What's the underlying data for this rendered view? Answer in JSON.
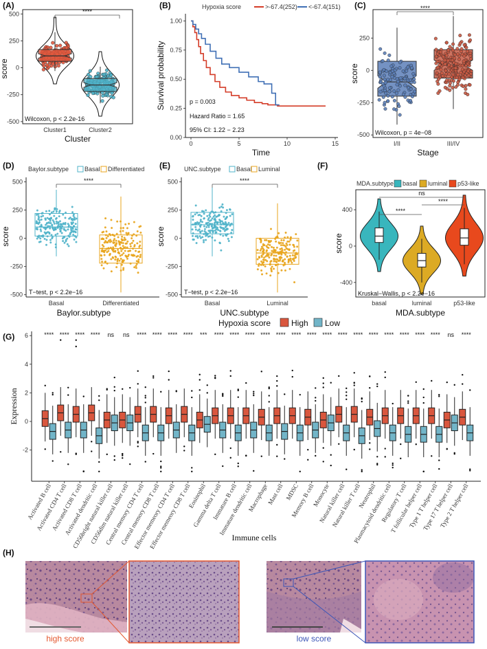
{
  "colors": {
    "cluster1": "#e2583e",
    "cluster2": "#4fb3c9",
    "stage_early": "#5c7fb8",
    "stage_late": "#c85a44",
    "basal": "#4fb3c9",
    "differentiated": "#e8a41c",
    "luminal": "#e8a41c",
    "mda_basal": "#39b6bd",
    "mda_luminal": "#dcaa24",
    "mda_p53": "#e8491d",
    "g_high": "#d9573e",
    "g_low": "#72b5c8",
    "surv_high": "#d43c28",
    "surv_low": "#3f6fb5",
    "he_pink": "#c9879f",
    "he_purple": "#7c5a92",
    "zoom_red": "#e4572e",
    "zoom_blue": "#3b55b7"
  },
  "panels": {
    "A": {
      "label": "(A)"
    },
    "B": {
      "label": "(B)"
    },
    "C": {
      "label": "(C)"
    },
    "D": {
      "label": "(D)"
    },
    "E": {
      "label": "(E)"
    },
    "F": {
      "label": "(F)"
    },
    "G": {
      "label": "(G)"
    },
    "H": {
      "label": "(H)"
    }
  },
  "chart_data": [
    {
      "id": "A",
      "type": "violin-box",
      "xlabel": "Cluster",
      "ylabel": "score",
      "categories": [
        "Cluster1",
        "Cluster2"
      ],
      "yticks": [
        500,
        250,
        0,
        -250,
        -500
      ],
      "ylim": [
        -520,
        540
      ],
      "boxes": [
        {
          "group": "Cluster1",
          "q1": 60,
          "median": 110,
          "q3": 170,
          "whisk_lo": -30,
          "whisk_hi": 330,
          "color_key": "cluster1"
        },
        {
          "group": "Cluster2",
          "q1": -220,
          "median": -160,
          "q3": -100,
          "whisk_lo": -330,
          "whisk_hi": 10,
          "color_key": "cluster2"
        }
      ],
      "annotations": {
        "pvalue": "Wilcoxon, p < 2.2e-16",
        "sig": "****"
      }
    },
    {
      "id": "B",
      "type": "line",
      "title": "Hypoxia score",
      "xlabel": "Time",
      "ylabel": "Survival probability",
      "xticks": [
        0,
        5,
        10,
        15
      ],
      "yticks": [
        "0.00",
        "0.25",
        "0.50",
        "0.75",
        "1.00"
      ],
      "xlim": [
        0,
        15
      ],
      "ylim": [
        0,
        1.05
      ],
      "series": [
        {
          "name": ">-67.4(252)",
          "color_key": "surv_high",
          "points": [
            [
              0,
              1.0
            ],
            [
              0.2,
              0.95
            ],
            [
              0.4,
              0.9
            ],
            [
              0.6,
              0.84
            ],
            [
              0.8,
              0.78
            ],
            [
              1.0,
              0.72
            ],
            [
              1.3,
              0.66
            ],
            [
              1.6,
              0.6
            ],
            [
              2.0,
              0.54
            ],
            [
              2.5,
              0.48
            ],
            [
              3.0,
              0.43
            ],
            [
              3.6,
              0.39
            ],
            [
              4.2,
              0.36
            ],
            [
              5.0,
              0.34
            ],
            [
              5.8,
              0.32
            ],
            [
              6.6,
              0.3
            ],
            [
              7.4,
              0.29
            ],
            [
              8.0,
              0.28
            ],
            [
              9.0,
              0.27
            ],
            [
              14,
              0.27
            ]
          ]
        },
        {
          "name": "<-67.4(151)",
          "color_key": "surv_low",
          "points": [
            [
              0,
              1.0
            ],
            [
              0.2,
              0.97
            ],
            [
              0.5,
              0.93
            ],
            [
              0.8,
              0.89
            ],
            [
              1.1,
              0.85
            ],
            [
              1.5,
              0.8
            ],
            [
              2.0,
              0.74
            ],
            [
              2.6,
              0.68
            ],
            [
              3.2,
              0.63
            ],
            [
              4.0,
              0.6
            ],
            [
              5.0,
              0.56
            ],
            [
              6.0,
              0.52
            ],
            [
              7.0,
              0.48
            ],
            [
              7.6,
              0.46
            ],
            [
              8.4,
              0.38
            ],
            [
              8.8,
              0.28
            ],
            [
              9.2,
              0.28
            ]
          ]
        }
      ],
      "annotations": {
        "pvalue": "p = 0.003",
        "hr": "Hazard Ratio = 1.65",
        "ci": "95% CI: 1.22 − 2.23"
      }
    },
    {
      "id": "C",
      "type": "box",
      "xlabel": "Stage",
      "ylabel": "score",
      "categories": [
        "I/II",
        "III/IV"
      ],
      "yticks": [
        250,
        0,
        -250,
        -500
      ],
      "ylim": [
        -520,
        470
      ],
      "boxes": [
        {
          "group": "I/II",
          "q1": -200,
          "median": -90,
          "q3": 70,
          "whisk_lo": -420,
          "whisk_hi": 330,
          "color_key": "stage_early"
        },
        {
          "group": "III/IV",
          "q1": -60,
          "median": 40,
          "q3": 160,
          "whisk_lo": -300,
          "whisk_hi": 420,
          "color_key": "stage_late"
        }
      ],
      "annotations": {
        "pvalue": "Wilcoxon, p = 4e−08",
        "sig": "****"
      }
    },
    {
      "id": "D",
      "type": "box",
      "xlabel": "Baylor.subtype",
      "ylabel": "score",
      "legend_title": "Baylor.subtype",
      "legend": [
        "Basal",
        "Differentiated"
      ],
      "categories": [
        "Basal",
        "Differentiated"
      ],
      "yticks": [
        500,
        250,
        0,
        -250,
        -500
      ],
      "ylim": [
        -520,
        540
      ],
      "boxes": [
        {
          "group": "Basal",
          "q1": 20,
          "median": 100,
          "q3": 220,
          "whisk_lo": -160,
          "whisk_hi": 430,
          "color_key": "basal"
        },
        {
          "group": "Differentiated",
          "q1": -220,
          "median": -90,
          "q3": 30,
          "whisk_lo": -480,
          "whisk_hi": 370,
          "color_key": "differentiated"
        }
      ],
      "annotations": {
        "pvalue": "T−test, p < 2.2e−16",
        "sig": "****"
      }
    },
    {
      "id": "E",
      "type": "box",
      "xlabel": "UNC.subtype",
      "ylabel": "score",
      "legend_title": "UNC.subtype",
      "legend": [
        "Basal",
        "Luminal"
      ],
      "categories": [
        "Basal",
        "Luminal"
      ],
      "yticks": [
        500,
        250,
        0,
        -250,
        -500
      ],
      "ylim": [
        -520,
        540
      ],
      "boxes": [
        {
          "group": "Basal",
          "q1": 40,
          "median": 120,
          "q3": 230,
          "whisk_lo": -160,
          "whisk_hi": 450,
          "color_key": "basal"
        },
        {
          "group": "Luminal",
          "q1": -230,
          "median": -130,
          "q3": 0,
          "whisk_lo": -480,
          "whisk_hi": 310,
          "color_key": "luminal"
        }
      ],
      "annotations": {
        "pvalue": "T−test, p < 2.2e−16",
        "sig": "****"
      }
    },
    {
      "id": "F",
      "type": "violin-box",
      "xlabel": "MDA.subtype",
      "ylabel": "score",
      "legend_title": "MDA.subtype",
      "legend": [
        "basal",
        "luminal",
        "p53-like"
      ],
      "categories": [
        "basal",
        "luminal",
        "p53-like"
      ],
      "yticks": [
        400,
        0,
        -400
      ],
      "ylim": [
        -560,
        620
      ],
      "boxes": [
        {
          "group": "basal",
          "q1": 40,
          "median": 110,
          "q3": 200,
          "whisk_lo": -150,
          "whisk_hi": 380,
          "color_key": "mda_basal"
        },
        {
          "group": "luminal",
          "q1": -230,
          "median": -160,
          "q3": -80,
          "whisk_lo": -400,
          "whisk_hi": 80,
          "color_key": "mda_luminal"
        },
        {
          "group": "p53-like",
          "q1": 10,
          "median": 90,
          "q3": 190,
          "whisk_lo": -200,
          "whisk_hi": 420,
          "color_key": "mda_p53"
        }
      ],
      "comparisons": [
        {
          "from": "basal",
          "to": "luminal",
          "label": "****"
        },
        {
          "from": "luminal",
          "to": "p53-like",
          "label": "****"
        },
        {
          "from": "basal",
          "to": "p53-like",
          "label": "ns"
        }
      ],
      "annotations": {
        "pvalue": "Kruskal−Wallis, p < 2.2e−16"
      }
    },
    {
      "id": "G",
      "type": "box",
      "title": "Hypoxia score",
      "xlabel": "Immune cells",
      "ylabel": "Expression",
      "legend": [
        "High",
        "Low"
      ],
      "yticks": [
        6,
        4,
        2,
        0,
        -2
      ],
      "ylim": [
        -3.7,
        6.2
      ],
      "categories": [
        "Activated B cell",
        "Activated CD4 T cell",
        "Activated CD8 T cell",
        "Activated dendritic cell",
        "CD56bright natural killer cell",
        "CD56dim natural killer cell",
        "Central memory CD4 T cell",
        "Central memory CD8 T cell",
        "Effector memeory CD4 T cell",
        "Effector memeory CD8 T cell",
        "Eosinophil",
        "Gamma delta T cell",
        "Immature  B cell",
        "Immature dendritic cell",
        "Macrophage",
        "Mast cell",
        "MDSC",
        "Memory B cell",
        "Monocyte",
        "Natural killer cell",
        "Natural killer T cell",
        "Neutrophil",
        "Plasmacytoid dendritic cell",
        "Regulatory T cell",
        "T follicular helper cell",
        "Type 1 T helper cell",
        "Type 17 T helper cell",
        "Type 2 T helper cell"
      ],
      "significance": [
        "****",
        "****",
        "****",
        "****",
        "ns",
        "ns",
        "****",
        "****",
        "****",
        "****",
        "***",
        "****",
        "****",
        "****",
        "****",
        "****",
        "****",
        "****",
        "****",
        "****",
        "****",
        "****",
        "****",
        "****",
        "****",
        "****",
        "ns",
        "****"
      ],
      "high_medians": [
        0.2,
        0.6,
        0.5,
        0.6,
        0.1,
        0.1,
        0.5,
        0.5,
        0.4,
        0.5,
        0.1,
        0.4,
        0.4,
        0.4,
        0.3,
        0.4,
        0.4,
        0.3,
        0.1,
        0.5,
        0.5,
        0.3,
        0.4,
        0.4,
        0.4,
        0.4,
        0.1,
        0.3
      ],
      "low_medians": [
        -0.7,
        -0.6,
        -0.6,
        -1.0,
        -0.1,
        -0.1,
        -0.8,
        -0.8,
        -0.6,
        -0.8,
        -0.2,
        -0.6,
        -0.8,
        -0.6,
        -0.8,
        -0.7,
        -0.8,
        -0.6,
        -0.1,
        -0.8,
        -1.0,
        -0.5,
        -0.8,
        -0.9,
        -0.9,
        -0.9,
        -0.1,
        -0.8
      ]
    }
  ],
  "panel_h": {
    "caption_high": "high score",
    "caption_low": "low score"
  }
}
